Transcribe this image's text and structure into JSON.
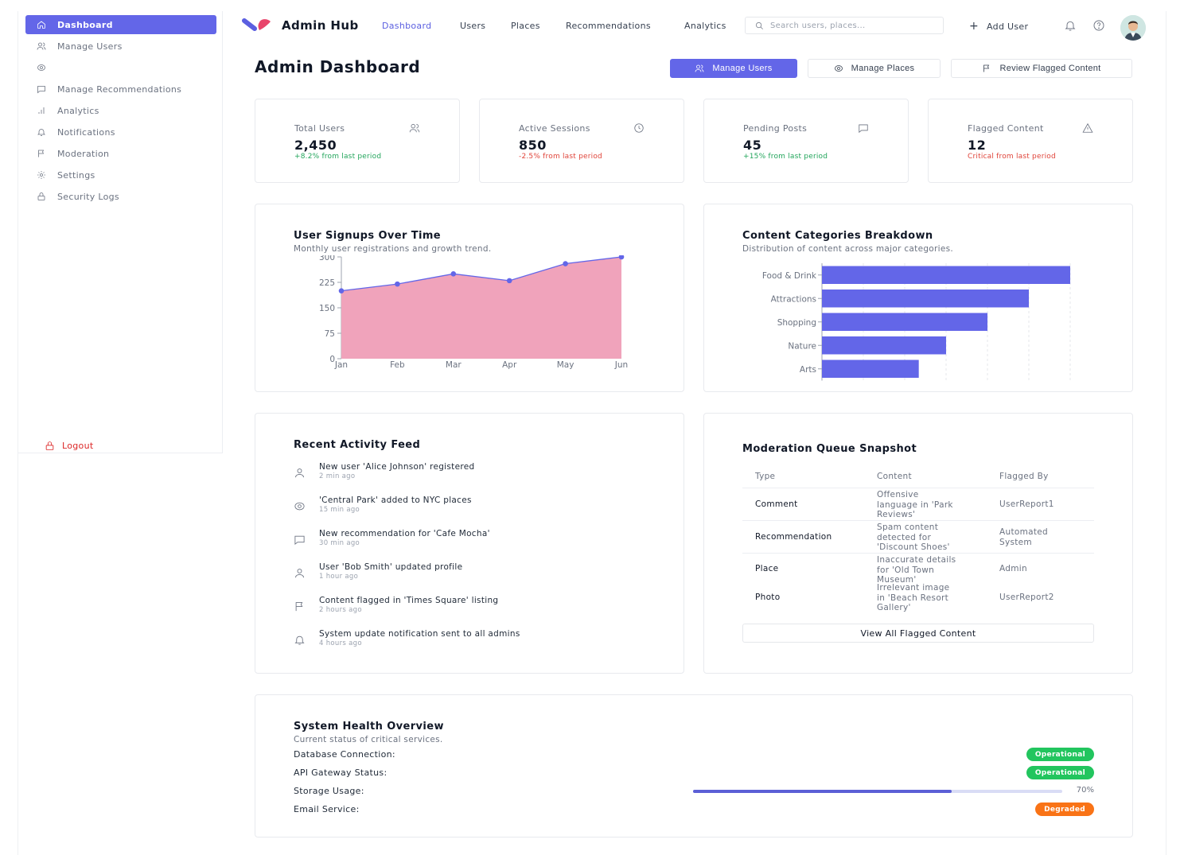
{
  "sidebar": {
    "items": [
      {
        "label": "Dashboard",
        "icon": "home-icon",
        "active": true
      },
      {
        "label": "Manage Users",
        "icon": "users-icon"
      },
      {
        "label": "",
        "icon": "map-pin-icon"
      },
      {
        "label": "Manage Recommendations",
        "icon": "message-square-icon"
      },
      {
        "label": "Analytics",
        "icon": "bar-chart-icon"
      },
      {
        "label": "Notifications",
        "icon": "bell-icon"
      },
      {
        "label": "Moderation",
        "icon": "flag-icon"
      },
      {
        "label": "Settings",
        "icon": "gear-icon"
      },
      {
        "label": "Security Logs",
        "icon": "lock-icon"
      }
    ],
    "logout_label": "Logout"
  },
  "topbar": {
    "brand": "Admin Hub",
    "nav": [
      "Dashboard",
      "Users",
      "Places",
      "Recommendations",
      "Analytics"
    ],
    "active_nav": "Dashboard",
    "search_placeholder": "Search users, places...",
    "add_user_label": "Add User"
  },
  "header": {
    "title": "Admin Dashboard",
    "buttons": [
      "Manage Users",
      "Manage Places",
      "Review Flagged Content"
    ]
  },
  "stats": [
    {
      "label": "Total Users",
      "value": "2,450",
      "change": "+8.2% from last period",
      "tone": "positive",
      "icon": "users-icon"
    },
    {
      "label": "Active Sessions",
      "value": "850",
      "change": "-2.5% from last period",
      "tone": "negative",
      "icon": "clock-icon"
    },
    {
      "label": "Pending Posts",
      "value": "45",
      "change": "+15% from last period",
      "tone": "positive",
      "icon": "message-square-icon"
    },
    {
      "label": "Flagged Content",
      "value": "12",
      "change": "Critical from last period",
      "tone": "negative",
      "icon": "alert-triangle-icon"
    }
  ],
  "colors": {
    "accent": "#6366e8",
    "positive": "#22a55b",
    "negative": "#e0443a",
    "area_fill": "#f0a3bb",
    "bar_fill": "#6366e8",
    "operational": "#22c55e",
    "degraded": "#f97316"
  },
  "chart_data": [
    {
      "type": "area",
      "title": "User Signups Over Time",
      "subtitle": "Monthly user registrations and growth trend.",
      "categories": [
        "Jan",
        "Feb",
        "Mar",
        "Apr",
        "May",
        "Jun"
      ],
      "values": [
        200,
        220,
        250,
        230,
        280,
        300
      ],
      "ylim": [
        0,
        300
      ],
      "yticks": [
        0,
        75,
        150,
        225,
        300
      ],
      "grid": false
    },
    {
      "type": "bar",
      "orientation": "horizontal",
      "title": "Content Categories Breakdown",
      "subtitle": "Distribution of content across major categories.",
      "categories": [
        "Food & Drink",
        "Attractions",
        "Shopping",
        "Nature",
        "Arts"
      ],
      "values": [
        300,
        250,
        200,
        150,
        117
      ],
      "xlim": [
        0,
        300
      ],
      "grid": true
    }
  ],
  "activity": {
    "title": "Recent Activity Feed",
    "items": [
      {
        "text": "New user 'Alice Johnson' registered",
        "time": "2 min ago",
        "icon": "user-icon"
      },
      {
        "text": "'Central Park' added to NYC places",
        "time": "15 min ago",
        "icon": "map-pin-icon"
      },
      {
        "text": "New recommendation for 'Cafe Mocha'",
        "time": "30 min ago",
        "icon": "message-square-icon"
      },
      {
        "text": "User 'Bob Smith' updated profile",
        "time": "1 hour ago",
        "icon": "user-icon"
      },
      {
        "text": "Content flagged in 'Times Square' listing",
        "time": "2 hours ago",
        "icon": "flag-icon"
      },
      {
        "text": "System update notification sent to all admins",
        "time": "4 hours ago",
        "icon": "bell-icon"
      }
    ]
  },
  "moderation": {
    "title": "Moderation Queue Snapshot",
    "columns": [
      "Type",
      "Content",
      "Flagged By"
    ],
    "rows": [
      {
        "type": "Comment",
        "content": [
          "Offensive",
          "language in 'Park",
          "Reviews'"
        ],
        "flagged_by": [
          "UserReport1"
        ]
      },
      {
        "type": "Recommendation",
        "content": [
          "Spam content",
          "detected for",
          "'Discount Shoes'"
        ],
        "flagged_by": [
          "Automated",
          "System"
        ]
      },
      {
        "type": "Place",
        "content": [
          "Inaccurate details",
          "for 'Old Town",
          "Museum'"
        ],
        "flagged_by": [
          "Admin"
        ]
      },
      {
        "type": "Photo",
        "content": [
          "Irrelevant image",
          "in 'Beach Resort",
          "Gallery'"
        ],
        "flagged_by": [
          "UserReport2"
        ]
      }
    ],
    "view_all_label": "View All Flagged Content"
  },
  "health": {
    "title": "System Health Overview",
    "subtitle": "Current status of critical services.",
    "rows": [
      {
        "label": "Database Connection:",
        "status": "Operational",
        "kind": "badge"
      },
      {
        "label": "API Gateway Status:",
        "status": "Operational",
        "kind": "badge"
      },
      {
        "label": "Storage Usage:",
        "progress": 0.7,
        "progress_label": "70%",
        "kind": "progress"
      },
      {
        "label": "Email Service:",
        "status": "Degraded",
        "kind": "badge"
      }
    ]
  }
}
